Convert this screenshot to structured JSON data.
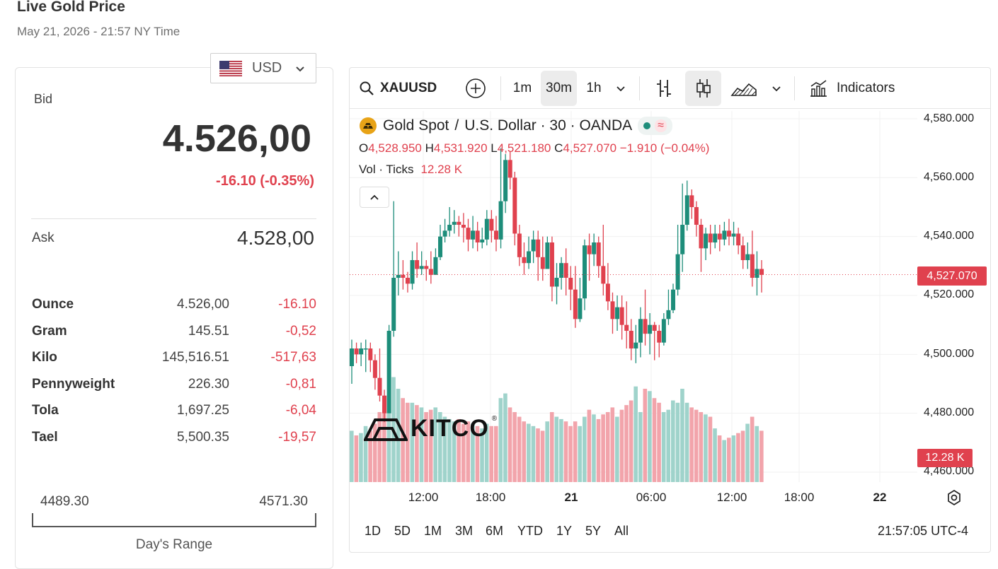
{
  "header": {
    "title": "Live Gold Price",
    "datetime": "May 21, 2026 - 21:57 NY Time"
  },
  "currency": {
    "code": "USD",
    "flag_icon": "us-flag-icon"
  },
  "quote": {
    "bid_label": "Bid",
    "bid_value": "4.526,00",
    "bid_change": "-16.10 (-0.35%)",
    "ask_label": "Ask",
    "ask_value": "4.528,00"
  },
  "units": [
    {
      "unit": "Ounce",
      "price": "4.526,00",
      "change": "-16.10"
    },
    {
      "unit": "Gram",
      "price": "145.51",
      "change": "-0,52"
    },
    {
      "unit": "Kilo",
      "price": "145,516.51",
      "change": "-517,63"
    },
    {
      "unit": "Pennyweight",
      "price": "226.30",
      "change": "-0,81"
    },
    {
      "unit": "Tola",
      "price": "1,697.25",
      "change": "-6,04"
    },
    {
      "unit": "Tael",
      "price": "5,500.35",
      "change": "-19,57"
    }
  ],
  "day_range": {
    "low": "4489.30",
    "high": "4571.30",
    "label": "Day's Range"
  },
  "toolbar": {
    "symbol": "XAUUSD",
    "intervals": [
      "1m",
      "30m",
      "1h"
    ],
    "selected_interval": "30m",
    "indicators_label": "Indicators"
  },
  "legend": {
    "name": "Gold Spot",
    "sep": "/",
    "rest": "U.S. Dollar · 30 · OANDA",
    "open_label": "O",
    "open": "4,528.950",
    "high_label": "H",
    "high": "4,531.920",
    "low_label": "L",
    "low": "4,521.180",
    "close_label": "C",
    "close": "4,527.070",
    "change": "−1.910 (−0.04%)",
    "vol_label": "Vol · Ticks",
    "vol_value": "12.28 K"
  },
  "watermark": "KITCO",
  "price_tag": "4,527.070",
  "vol_tag": "12.28 K",
  "x_labels": [
    {
      "text": "12:00",
      "bold": false
    },
    {
      "text": "18:00",
      "bold": false
    },
    {
      "text": "21",
      "bold": true
    },
    {
      "text": "06:00",
      "bold": false
    },
    {
      "text": "12:00",
      "bold": false
    },
    {
      "text": "18:00",
      "bold": false
    },
    {
      "text": "22",
      "bold": true
    }
  ],
  "ranges": [
    "1D",
    "5D",
    "1M",
    "3M",
    "6M",
    "YTD",
    "1Y",
    "5Y",
    "All"
  ],
  "clock": "21:57:05 UTC-4",
  "colors": {
    "up": "#1d8d7a",
    "down": "#e0414e",
    "vol_up": "#9fd3cb",
    "vol_down": "#f2a4ab"
  },
  "chart_data": {
    "type": "candlestick",
    "symbol": "XAUUSD",
    "interval": "30m",
    "y_ticks": [
      "4,580.000",
      "4,560.000",
      "4,540.000",
      "4,520.000",
      "4,500.000",
      "4,480.000",
      "4,460.000"
    ],
    "ylim": [
      4460,
      4580
    ],
    "last_price": 4527.07,
    "candles": [
      [
        4496,
        4502,
        4490,
        4505
      ],
      [
        4502,
        4500,
        4497,
        4504
      ],
      [
        4500,
        4502,
        4496,
        4504
      ],
      [
        4502,
        4502,
        4494,
        4505
      ],
      [
        4502,
        4498,
        4494,
        4504
      ],
      [
        4498,
        4492,
        4488,
        4500
      ],
      [
        4492,
        4486,
        4484,
        4502
      ],
      [
        4486,
        4480,
        4477,
        4488
      ],
      [
        4480,
        4508,
        4480,
        4510
      ],
      [
        4508,
        4526,
        4506,
        4552
      ],
      [
        4526,
        4527,
        4520,
        4535
      ],
      [
        4527,
        4526,
        4522,
        4532
      ],
      [
        4526,
        4524,
        4521,
        4528
      ],
      [
        4524,
        4532,
        4522,
        4535
      ],
      [
        4532,
        4529,
        4526,
        4538
      ],
      [
        4529,
        4530,
        4527,
        4535
      ],
      [
        4530,
        4529,
        4525,
        4532
      ],
      [
        4529,
        4527,
        4524,
        4535
      ],
      [
        4527,
        4533,
        4527,
        4536
      ],
      [
        4533,
        4540,
        4532,
        4544
      ],
      [
        4540,
        4542,
        4538,
        4546
      ],
      [
        4542,
        4544,
        4540,
        4550
      ],
      [
        4544,
        4545,
        4541,
        4549
      ],
      [
        4545,
        4544,
        4540,
        4547
      ],
      [
        4544,
        4543,
        4538,
        4548
      ],
      [
        4543,
        4539,
        4535,
        4546
      ],
      [
        4539,
        4542,
        4536,
        4547
      ],
      [
        4542,
        4538,
        4535,
        4545
      ],
      [
        4538,
        4539,
        4536,
        4543
      ],
      [
        4539,
        4546,
        4537,
        4549
      ],
      [
        4546,
        4542,
        4538,
        4549
      ],
      [
        4542,
        4539,
        4535,
        4547
      ],
      [
        4539,
        4552,
        4536,
        4570
      ],
      [
        4552,
        4566,
        4548,
        4568
      ],
      [
        4566,
        4560,
        4556,
        4569
      ],
      [
        4560,
        4541,
        4537,
        4562
      ],
      [
        4541,
        4533,
        4530,
        4544
      ],
      [
        4533,
        4531,
        4527,
        4538
      ],
      [
        4531,
        4535,
        4529,
        4540
      ],
      [
        4535,
        4539,
        4531,
        4542
      ],
      [
        4539,
        4533,
        4525,
        4542
      ],
      [
        4533,
        4529,
        4525,
        4540
      ],
      [
        4529,
        4538,
        4529,
        4540
      ],
      [
        4538,
        4523,
        4518,
        4540
      ],
      [
        4523,
        4526,
        4517,
        4531
      ],
      [
        4526,
        4531,
        4522,
        4533
      ],
      [
        4531,
        4526,
        4520,
        4536
      ],
      [
        4526,
        4522,
        4515,
        4530
      ],
      [
        4522,
        4512,
        4509,
        4530
      ],
      [
        4512,
        4519,
        4511,
        4526
      ],
      [
        4519,
        4537,
        4515,
        4539
      ],
      [
        4537,
        4534,
        4525,
        4541
      ],
      [
        4534,
        4538,
        4530,
        4541
      ],
      [
        4538,
        4530,
        4526,
        4540
      ],
      [
        4530,
        4524,
        4520,
        4544
      ],
      [
        4524,
        4518,
        4515,
        4531
      ],
      [
        4518,
        4512,
        4507,
        4521
      ],
      [
        4512,
        4516,
        4508,
        4520
      ],
      [
        4516,
        4510,
        4505,
        4520
      ],
      [
        4510,
        4508,
        4502,
        4518
      ],
      [
        4508,
        4502,
        4498,
        4512
      ],
      [
        4502,
        4504,
        4497,
        4510
      ],
      [
        4504,
        4512,
        4499,
        4516
      ],
      [
        4512,
        4507,
        4503,
        4522
      ],
      [
        4507,
        4510,
        4500,
        4514
      ],
      [
        4510,
        4508,
        4498,
        4511
      ],
      [
        4508,
        4504,
        4499,
        4510
      ],
      [
        4504,
        4512,
        4503,
        4514
      ],
      [
        4512,
        4515,
        4510,
        4522
      ],
      [
        4515,
        4522,
        4514,
        4524
      ],
      [
        4522,
        4534,
        4520,
        4544
      ],
      [
        4534,
        4544,
        4528,
        4558
      ],
      [
        4544,
        4554,
        4542,
        4559
      ],
      [
        4554,
        4550,
        4546,
        4556
      ],
      [
        4550,
        4544,
        4540,
        4552
      ],
      [
        4544,
        4536,
        4528,
        4546
      ],
      [
        4536,
        4541,
        4532,
        4543
      ],
      [
        4541,
        4538,
        4534,
        4544
      ],
      [
        4538,
        4541,
        4536,
        4544
      ],
      [
        4541,
        4539,
        4535,
        4544
      ],
      [
        4539,
        4542,
        4537,
        4545
      ],
      [
        4542,
        4540,
        4537,
        4546
      ],
      [
        4540,
        4541,
        4537,
        4545
      ],
      [
        4541,
        4537,
        4534,
        4543
      ],
      [
        4537,
        4532,
        4529,
        4540
      ],
      [
        4532,
        4534,
        4529,
        4538
      ],
      [
        4534,
        4526,
        4523,
        4542
      ],
      [
        4526,
        4529,
        4520,
        4535
      ],
      [
        4529,
        4527,
        4521,
        4532
      ]
    ],
    "volumes": [
      22,
      20,
      21,
      24,
      22,
      25,
      30,
      33,
      37,
      45,
      40,
      36,
      34,
      34,
      33,
      32,
      30,
      31,
      32,
      30,
      28,
      27,
      26,
      27,
      25,
      26,
      25,
      24,
      23,
      25,
      24,
      24,
      36,
      38,
      32,
      30,
      28,
      26,
      25,
      24,
      23,
      22,
      26,
      30,
      28,
      27,
      26,
      24,
      26,
      24,
      28,
      31,
      29,
      27,
      29,
      30,
      32,
      28,
      31,
      33,
      35,
      41,
      30,
      40,
      39,
      36,
      34,
      30,
      31,
      35,
      34,
      40,
      34,
      32,
      31,
      30,
      29,
      28,
      23,
      20,
      18,
      19,
      20,
      21,
      22,
      25,
      28,
      24,
      22
    ]
  }
}
